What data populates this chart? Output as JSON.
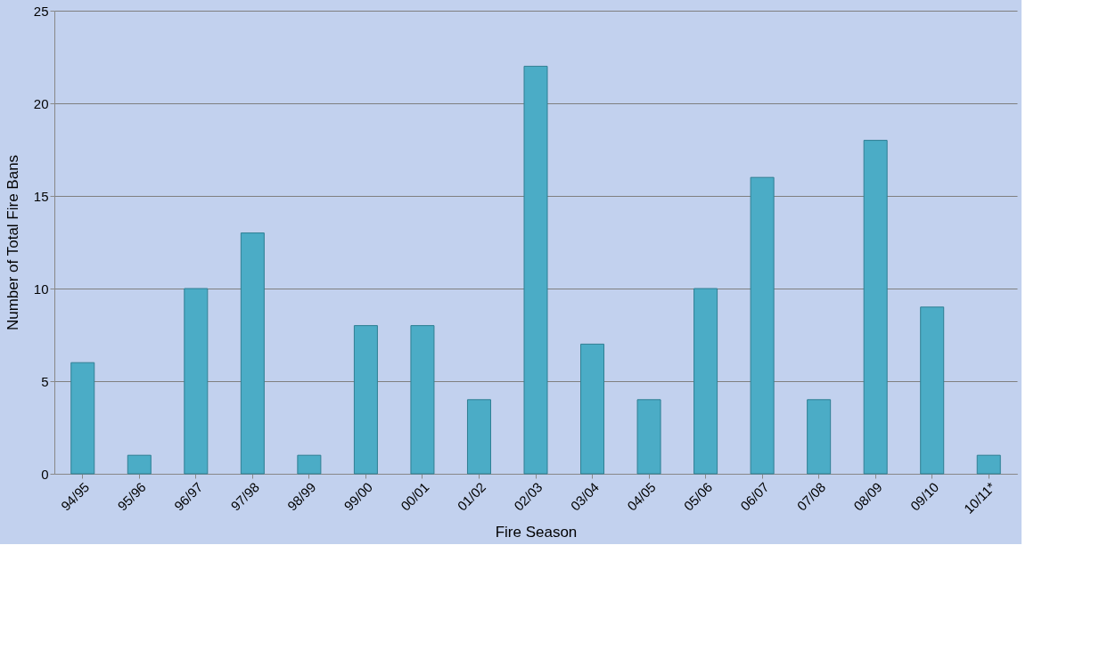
{
  "chart_data": {
    "type": "bar",
    "xlabel": "Fire Season",
    "ylabel": "Number  of Total Fire Bans",
    "categories": [
      "94/95",
      "95/96",
      "96/97",
      "97/98",
      "98/99",
      "99/00",
      "00/01",
      "01/02",
      "02/03",
      "03/04",
      "04/05",
      "05/06",
      "06/07",
      "07/08",
      "08/09",
      "09/10",
      "10/11*"
    ],
    "values": [
      6,
      1,
      10,
      13,
      1,
      8,
      8,
      4,
      22,
      7,
      4,
      10,
      16,
      4,
      18,
      9,
      1
    ],
    "color": "#4bacc6",
    "ylim": [
      0,
      25
    ],
    "yticks": [
      0,
      5,
      10,
      15,
      20,
      25
    ],
    "grid": "y"
  }
}
